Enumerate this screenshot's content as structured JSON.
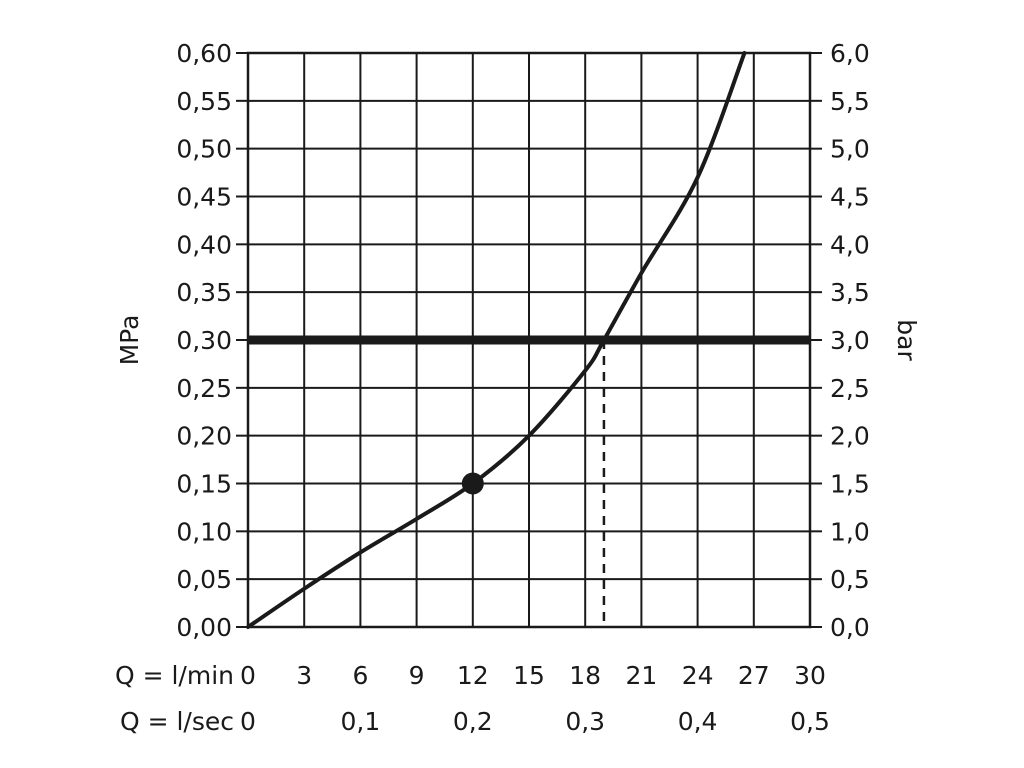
{
  "chart_data": {
    "type": "line",
    "title": "",
    "y_left": {
      "label": "MPa",
      "range": [
        0,
        0.6
      ],
      "ticks": [
        "0,00",
        "0,05",
        "0,10",
        "0,15",
        "0,20",
        "0,25",
        "0,30",
        "0,35",
        "0,40",
        "0,45",
        "0,50",
        "0,55",
        "0,60"
      ]
    },
    "y_right": {
      "label": "bar",
      "range": [
        0,
        6
      ],
      "ticks": [
        "0,0",
        "0,5",
        "1,0",
        "1,5",
        "2,0",
        "2,5",
        "3,0",
        "3,5",
        "4,0",
        "4,5",
        "5,0",
        "5,5",
        "6,0"
      ]
    },
    "x_primary": {
      "label": "Q = l/min",
      "range": [
        0,
        30
      ],
      "ticks": [
        "0",
        "3",
        "6",
        "9",
        "12",
        "15",
        "18",
        "21",
        "24",
        "27",
        "30"
      ]
    },
    "x_secondary": {
      "label": "Q = l/sec",
      "ticks": [
        {
          "lmin": 0,
          "text": "0"
        },
        {
          "lmin": 6,
          "text": "0,1"
        },
        {
          "lmin": 12,
          "text": "0,2"
        },
        {
          "lmin": 18,
          "text": "0,3"
        },
        {
          "lmin": 24,
          "text": "0,4"
        },
        {
          "lmin": 30,
          "text": "0,5"
        }
      ]
    },
    "grid": true,
    "series": [
      {
        "x": [
          0,
          3,
          6,
          9,
          12,
          15,
          18,
          19,
          21,
          24,
          26.5
        ],
        "y": [
          0,
          0.04,
          0.078,
          0.113,
          0.15,
          0.2,
          0.268,
          0.3,
          0.37,
          0.47,
          0.6
        ]
      }
    ],
    "reference_line_y": 0.3,
    "dashed_drop_x": 19,
    "marker_point": {
      "x": 12,
      "y": 0.15
    }
  }
}
